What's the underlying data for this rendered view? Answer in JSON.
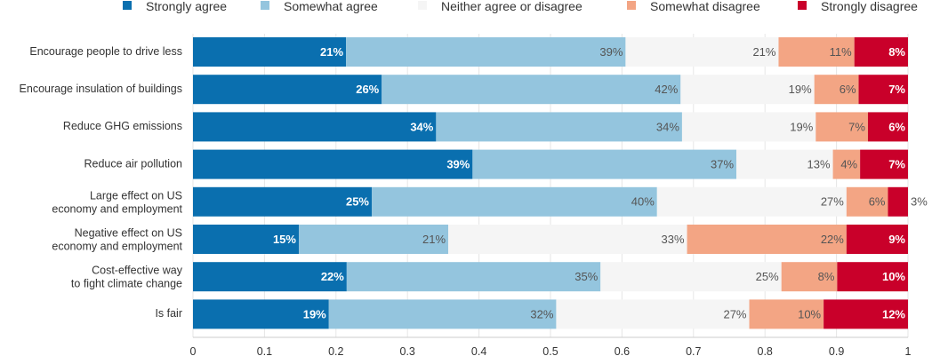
{
  "chart_data": {
    "type": "bar",
    "orientation": "horizontal",
    "stacked": true,
    "title": "",
    "xlabel": "",
    "ylabel": "",
    "xlim": [
      0,
      1
    ],
    "xticks": [
      "0",
      "0.1",
      "0.2",
      "0.3",
      "0.4",
      "0.5",
      "0.6",
      "0.7",
      "0.8",
      "0.9",
      "1"
    ],
    "grid": true,
    "legend_position": "top",
    "categories": [
      [
        "Encourage people to drive less"
      ],
      [
        "Encourage insulation of buildings"
      ],
      [
        "Reduce GHG emissions"
      ],
      [
        "Reduce air pollution"
      ],
      [
        "Large effect on US",
        "economy and employment"
      ],
      [
        "Negative effect on US",
        "economy and employment"
      ],
      [
        "Cost-effective way",
        "to fight climate change"
      ],
      [
        "Is fair"
      ]
    ],
    "series": [
      {
        "name": "Strongly agree",
        "color": "#0a6faf",
        "label_color": "#ffffff",
        "label_bold": true,
        "values": [
          0.214,
          0.264,
          0.34,
          0.391,
          0.25,
          0.148,
          0.215,
          0.19
        ],
        "labels": [
          "21%",
          "26%",
          "34%",
          "39%",
          "25%",
          "15%",
          "22%",
          "19%"
        ]
      },
      {
        "name": "Somewhat agree",
        "color": "#94c5de",
        "label_color": "#555555",
        "label_bold": false,
        "values": [
          0.391,
          0.418,
          0.344,
          0.369,
          0.399,
          0.209,
          0.355,
          0.318
        ],
        "labels": [
          "39%",
          "42%",
          "34%",
          "37%",
          "40%",
          "21%",
          "35%",
          "32%"
        ]
      },
      {
        "name": "Neither agree or disagree",
        "color": "#f5f5f5",
        "label_color": "#555555",
        "label_bold": false,
        "values": [
          0.214,
          0.187,
          0.187,
          0.135,
          0.265,
          0.334,
          0.253,
          0.27
        ],
        "labels": [
          "21%",
          "19%",
          "19%",
          "13%",
          "27%",
          "33%",
          "25%",
          "27%"
        ]
      },
      {
        "name": "Somewhat disagree",
        "color": "#f3a584",
        "label_color": "#555555",
        "label_bold": false,
        "values": [
          0.106,
          0.062,
          0.073,
          0.038,
          0.058,
          0.223,
          0.078,
          0.104
        ],
        "labels": [
          "11%",
          "6%",
          "7%",
          "4%",
          "6%",
          "22%",
          "8%",
          "10%"
        ]
      },
      {
        "name": "Strongly disagree",
        "color": "#c9002a",
        "label_color": "#ffffff",
        "label_bold": true,
        "values": [
          0.075,
          0.069,
          0.056,
          0.067,
          0.028,
          0.086,
          0.099,
          0.118
        ],
        "labels": [
          "8%",
          "7%",
          "6%",
          "7%",
          "3%",
          "9%",
          "10%",
          "12%"
        ]
      }
    ]
  }
}
